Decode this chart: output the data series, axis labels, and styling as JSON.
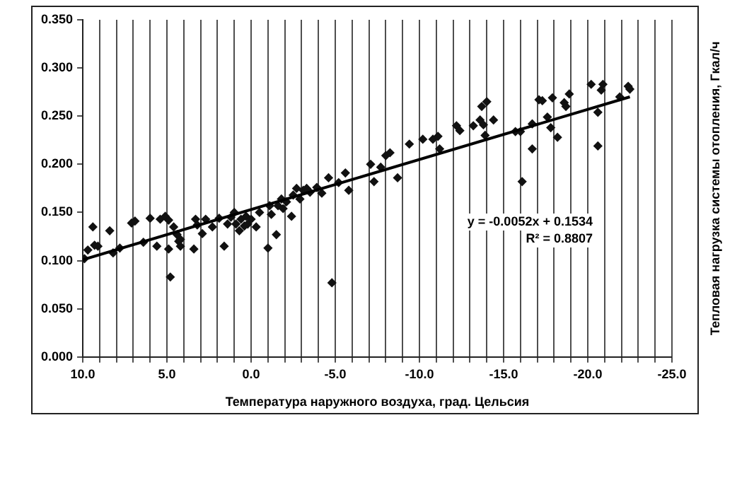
{
  "chart_data": {
    "type": "scatter",
    "xlabel": "Температура наружного воздуха, град. Цельсия",
    "ylabel": "Тепловая нагрузка системы отопления, Гкал/ч",
    "xlim": [
      10,
      -25
    ],
    "xticks": [
      {
        "value": 10,
        "label": "10.0"
      },
      {
        "value": 9,
        "label": null
      },
      {
        "value": 8,
        "label": null
      },
      {
        "value": 7,
        "label": null
      },
      {
        "value": 6,
        "label": null
      },
      {
        "value": 5,
        "label": "5.0"
      },
      {
        "value": 4,
        "label": null
      },
      {
        "value": 3,
        "label": null
      },
      {
        "value": 2,
        "label": null
      },
      {
        "value": 1,
        "label": null
      },
      {
        "value": 0,
        "label": "0.0"
      },
      {
        "value": -1,
        "label": null
      },
      {
        "value": -2,
        "label": null
      },
      {
        "value": -3,
        "label": null
      },
      {
        "value": -4,
        "label": null
      },
      {
        "value": -5,
        "label": "-5.0"
      },
      {
        "value": -6,
        "label": null
      },
      {
        "value": -7,
        "label": null
      },
      {
        "value": -8,
        "label": null
      },
      {
        "value": -9,
        "label": null
      },
      {
        "value": -10,
        "label": "-10.0"
      },
      {
        "value": -11,
        "label": null
      },
      {
        "value": -12,
        "label": null
      },
      {
        "value": -13,
        "label": null
      },
      {
        "value": -14,
        "label": null
      },
      {
        "value": -15,
        "label": "-15.0"
      },
      {
        "value": -16,
        "label": null
      },
      {
        "value": -17,
        "label": null
      },
      {
        "value": -18,
        "label": null
      },
      {
        "value": -19,
        "label": null
      },
      {
        "value": -20,
        "label": "-20.0"
      },
      {
        "value": -21,
        "label": null
      },
      {
        "value": -22,
        "label": null
      },
      {
        "value": -23,
        "label": null
      },
      {
        "value": -24,
        "label": null
      },
      {
        "value": -25,
        "label": "-25.0"
      }
    ],
    "ylim": [
      0,
      0.35
    ],
    "yticks": [
      {
        "value": 0,
        "label": "0.000"
      },
      {
        "value": 0.05,
        "label": "0.050"
      },
      {
        "value": 0.1,
        "label": "0.100"
      },
      {
        "value": 0.15,
        "label": "0.150"
      },
      {
        "value": 0.2,
        "label": "0.200"
      },
      {
        "value": 0.25,
        "label": "0.250"
      },
      {
        "value": 0.3,
        "label": "0.300"
      },
      {
        "value": 0.35,
        "label": "0.350"
      }
    ],
    "grid": "x",
    "legend": false,
    "annotations": [
      "y = -0.0052x + 0.1534",
      "R² = 0.8807"
    ],
    "series": [
      {
        "color": "#111111",
        "marker": "diamond",
        "x": [
          9.9,
          9.7,
          9.4,
          9.3,
          9.1,
          8.4,
          8.2,
          7.8,
          7.1,
          6.9,
          6.4,
          6.0,
          5.6,
          5.4,
          5.1,
          4.9,
          4.9,
          4.8,
          4.6,
          4.4,
          4.3,
          4.2,
          4.2,
          3.4,
          3.3,
          3.2,
          2.9,
          2.7,
          2.3,
          1.9,
          1.6,
          1.4,
          1.2,
          1.0,
          0.9,
          0.7,
          0.6,
          0.4,
          0.3,
          0.2,
          0.0,
          -0.3,
          -0.5,
          -1.0,
          -1.1,
          -1.2,
          -1.5,
          -1.6,
          -1.8,
          -1.9,
          -2.1,
          -2.4,
          -2.5,
          -2.7,
          -2.9,
          -3.1,
          -3.3,
          -3.5,
          -3.9,
          -4.2,
          -4.6,
          -4.8,
          -5.2,
          -5.6,
          -5.8,
          -7.1,
          -7.3,
          -7.7,
          -8.0,
          -8.25,
          -8.7,
          -9.4,
          -10.2,
          -10.8,
          -11.1,
          -11.2,
          -12.2,
          -12.4,
          -13.2,
          -13.6,
          -13.7,
          -13.8,
          -13.9,
          -14.0,
          -14.4,
          -15.7,
          -16.0,
          -16.1,
          -16.7,
          -16.7,
          -17.1,
          -17.3,
          -17.6,
          -17.8,
          -17.9,
          -18.2,
          -18.6,
          -18.7,
          -18.9,
          -20.2,
          -20.6,
          -20.6,
          -20.8,
          -20.9,
          -21.9,
          -22.4,
          -22.5
        ],
        "values": [
          0.102,
          0.111,
          0.135,
          0.116,
          0.115,
          0.131,
          0.108,
          0.113,
          0.139,
          0.141,
          0.119,
          0.144,
          0.115,
          0.143,
          0.146,
          0.142,
          0.112,
          0.083,
          0.135,
          0.127,
          0.12,
          0.122,
          0.115,
          0.112,
          0.143,
          0.137,
          0.128,
          0.143,
          0.135,
          0.144,
          0.115,
          0.138,
          0.145,
          0.15,
          0.138,
          0.131,
          0.143,
          0.136,
          0.146,
          0.138,
          0.143,
          0.135,
          0.15,
          0.113,
          0.157,
          0.148,
          0.127,
          0.157,
          0.164,
          0.154,
          0.161,
          0.146,
          0.168,
          0.175,
          0.164,
          0.173,
          0.175,
          0.171,
          0.176,
          0.17,
          0.186,
          0.077,
          0.181,
          0.191,
          0.173,
          0.2,
          0.182,
          0.197,
          0.209,
          0.212,
          0.186,
          0.221,
          0.226,
          0.226,
          0.229,
          0.216,
          0.24,
          0.235,
          0.24,
          0.246,
          0.26,
          0.241,
          0.23,
          0.265,
          0.246,
          0.234,
          0.234,
          0.182,
          0.242,
          0.216,
          0.267,
          0.266,
          0.249,
          0.238,
          0.269,
          0.228,
          0.264,
          0.26,
          0.273,
          0.283,
          0.254,
          0.219,
          0.277,
          0.283,
          0.27,
          0.281,
          0.278
        ]
      },
      {
        "type": "line",
        "marker": "none",
        "color": "#000000",
        "x": [
          10,
          -22.5
        ],
        "values": [
          0.101,
          0.27
        ]
      }
    ]
  }
}
